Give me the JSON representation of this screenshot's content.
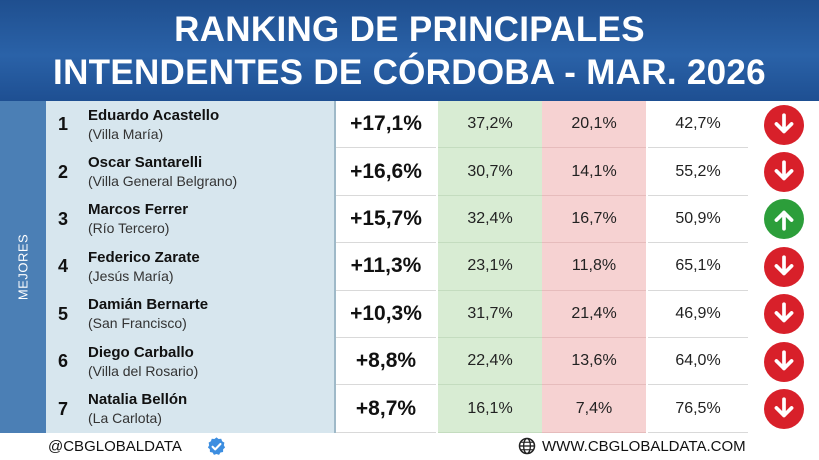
{
  "header": {
    "title_line1": "RANKING DE PRINCIPALES",
    "title_line2": "INTENDENTES DE CÓRDOBA - MAR. 2026"
  },
  "side_label": "MEJORES",
  "rows": [
    {
      "rank": "1",
      "name": "Eduardo Acastello",
      "city": "(Villa María)",
      "variation": "+17,1%",
      "pct_positive": "37,2%",
      "pct_negative": "20,1%",
      "pct_other": "42,7%",
      "trend": "down"
    },
    {
      "rank": "2",
      "name": "Oscar Santarelli",
      "city": "(Villa General Belgrano)",
      "variation": "+16,6%",
      "pct_positive": "30,7%",
      "pct_negative": "14,1%",
      "pct_other": "55,2%",
      "trend": "down"
    },
    {
      "rank": "3",
      "name": "Marcos Ferrer",
      "city": "(Río Tercero)",
      "variation": "+15,7%",
      "pct_positive": "32,4%",
      "pct_negative": "16,7%",
      "pct_other": "50,9%",
      "trend": "up"
    },
    {
      "rank": "4",
      "name": "Federico Zarate",
      "city": "(Jesús María)",
      "variation": "+11,3%",
      "pct_positive": "23,1%",
      "pct_negative": "11,8%",
      "pct_other": "65,1%",
      "trend": "down"
    },
    {
      "rank": "5",
      "name": "Damián Bernarte",
      "city": "(San Francisco)",
      "variation": "+10,3%",
      "pct_positive": "31,7%",
      "pct_negative": "21,4%",
      "pct_other": "46,9%",
      "trend": "down"
    },
    {
      "rank": "6",
      "name": "Diego Carballo",
      "city": "(Villa del Rosario)",
      "variation": "+8,8%",
      "pct_positive": "22,4%",
      "pct_negative": "13,6%",
      "pct_other": "64,0%",
      "trend": "down"
    },
    {
      "rank": "7",
      "name": "Natalia Bellón",
      "city": "(La Carlota)",
      "variation": "+8,7%",
      "pct_positive": "16,1%",
      "pct_negative": "7,4%",
      "pct_other": "76,5%",
      "trend": "down"
    }
  ],
  "icons": {
    "trend_down": "arrow-down-icon",
    "trend_up": "arrow-up-icon",
    "verified": "verified-badge-icon",
    "web": "globe-icon"
  },
  "colors": {
    "header_bg": "#2a62a8",
    "side_bg": "#4b7fb5",
    "name_bg": "#d7e6ee",
    "positive_bg": "#d8ecd3",
    "negative_bg": "#f6d2d2",
    "down_arrow": "#d8202a",
    "up_arrow": "#2c9e3a"
  },
  "footer": {
    "handle": "@CBGLOBALDATA",
    "website": "WWW.CBGLOBALDATA.COM"
  }
}
